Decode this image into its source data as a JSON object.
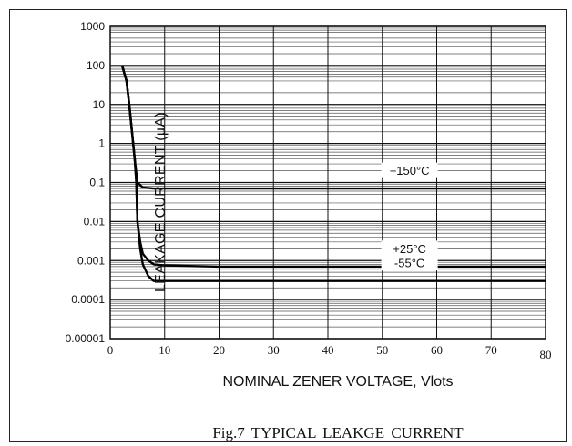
{
  "chart_data": {
    "type": "line",
    "xlabel": "NOMINAL ZENER VOLTAGE, Vlots",
    "ylabel": "LEAKAGE CURRENT (µA)",
    "caption": "Fig.7 TYPICAL  LEAKGE  CURRENT",
    "xlim": [
      0,
      80
    ],
    "ylim": [
      1e-05,
      1000
    ],
    "y_scale": "log",
    "grid": true,
    "x_ticks": [
      "0",
      "10",
      "20",
      "30",
      "40",
      "50",
      "60",
      "70",
      "80"
    ],
    "y_ticks": [
      "1000",
      "100",
      "10",
      "1",
      "0.1",
      "0.01",
      "0.001",
      "0.0001",
      "0.00001"
    ],
    "series": [
      {
        "name": "+150°C",
        "x": [
          2.2,
          3,
          3.5,
          4,
          4.5,
          5,
          6,
          8,
          10,
          20,
          40,
          60,
          80
        ],
        "y": [
          100,
          40,
          10,
          2,
          0.4,
          0.1,
          0.075,
          0.07,
          0.07,
          0.07,
          0.07,
          0.07,
          0.07
        ]
      },
      {
        "name": "+25°C",
        "x": [
          2.2,
          3,
          3.5,
          4,
          4.5,
          4.8,
          5,
          5.5,
          6,
          7,
          8,
          10,
          20,
          40,
          60,
          80
        ],
        "y": [
          100,
          40,
          10,
          2,
          0.4,
          0.1,
          0.01,
          0.003,
          0.0015,
          0.001,
          0.0008,
          0.00075,
          0.0007,
          0.0007,
          0.0007,
          0.0007
        ]
      },
      {
        "name": "-55°C",
        "x": [
          2.2,
          3,
          3.5,
          4,
          4.5,
          4.8,
          5,
          5.5,
          6,
          7,
          8,
          10,
          20,
          40,
          60,
          80
        ],
        "y": [
          100,
          40,
          10,
          2,
          0.4,
          0.1,
          0.01,
          0.002,
          0.0008,
          0.0004,
          0.0003,
          0.0003,
          0.0003,
          0.0003,
          0.0003,
          0.0003
        ]
      }
    ]
  }
}
